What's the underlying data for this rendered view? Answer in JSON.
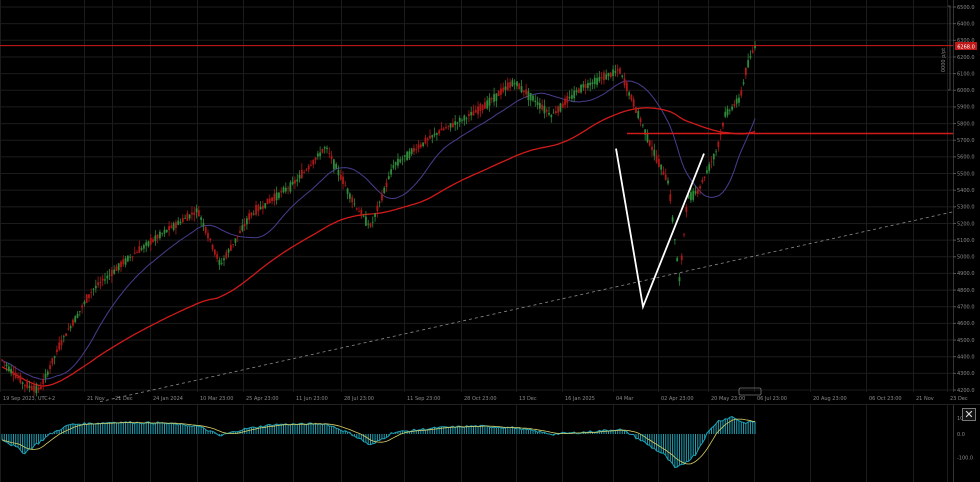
{
  "colors": {
    "background": "#000000",
    "bull": "#2e8b3a",
    "bear": "#b01818",
    "sma_short": "#4a3d8f",
    "sma_long": "#d11a1a",
    "resistance": "#d11a1a",
    "price_label_bg": "#c01818",
    "macd": "#1fa0b4",
    "signal": "#d9d066",
    "trend_dashed": "#8c8c8c",
    "v_pattern": "#ffffff"
  },
  "price_panel": {
    "current_price_label": "6268.0",
    "price_axis_caption": "0000 p/pt",
    "price_ticks": [
      "6500.0",
      "6400.0",
      "6300.0",
      "6200.0",
      "6100.0",
      "6000.0",
      "5900.0",
      "5800.0",
      "5700.0",
      "5600.0",
      "5500.0",
      "5400.0",
      "5300.0",
      "5200.0",
      "5100.0",
      "5000.0",
      "4900.0",
      "4800.0",
      "4700.0",
      "4600.0",
      "4500.0",
      "4400.0",
      "4300.0",
      "4200.0"
    ]
  },
  "time_axis": {
    "labels": [
      "19 Sep 2023, UTC+2",
      "21 Nov",
      "21 Dec",
      "24 Jan 2024",
      "10 Mar 23:00",
      "25 Apr 23:00",
      "11 Jun 23:00",
      "28 Jul 23:00",
      "11 Sep 23:00",
      "28 Oct 23:00",
      "13 Dec",
      "16 Jan 2025",
      "04 Mar",
      "02 Apr 23:00",
      "20 May 23:00",
      "06 Jul 23:00",
      "20 Aug 23:00",
      "06 Oct 23:00",
      "21 Nov",
      "23 Dec"
    ]
  },
  "indicator_panel": {
    "ticks": [
      "100.0",
      "0.0",
      "-100.0"
    ]
  },
  "close_button_label": "✕",
  "chart_data": {
    "type": "candlestick",
    "title": "",
    "ylim": [
      4200,
      6500
    ],
    "indicator_ylim": [
      -170,
      140
    ],
    "horizontal_levels": [
      {
        "value": 6268,
        "color": "#d11a1a"
      },
      {
        "value": 5740,
        "color": "#d11a1a"
      }
    ],
    "trendline": {
      "from": [
        "19 Sep 2023",
        4130
      ],
      "to": [
        "23 Dec",
        5270
      ],
      "style": "dashed"
    },
    "v_pattern": {
      "points": [
        [
          "04 Mar",
          5650
        ],
        [
          "02 Apr",
          4700
        ],
        [
          "20 May",
          5620
        ]
      ]
    },
    "close_path": [
      {
        "t": 0.0,
        "price": 4380
      },
      {
        "t": 0.03,
        "price": 4230
      },
      {
        "t": 0.05,
        "price": 4200
      },
      {
        "t": 0.08,
        "price": 4500
      },
      {
        "t": 0.12,
        "price": 4800
      },
      {
        "t": 0.17,
        "price": 5000
      },
      {
        "t": 0.21,
        "price": 5130
      },
      {
        "t": 0.26,
        "price": 5280
      },
      {
        "t": 0.29,
        "price": 4950
      },
      {
        "t": 0.33,
        "price": 5250
      },
      {
        "t": 0.39,
        "price": 5450
      },
      {
        "t": 0.43,
        "price": 5660
      },
      {
        "t": 0.47,
        "price": 5300
      },
      {
        "t": 0.49,
        "price": 5180
      },
      {
        "t": 0.52,
        "price": 5550
      },
      {
        "t": 0.58,
        "price": 5750
      },
      {
        "t": 0.63,
        "price": 5870
      },
      {
        "t": 0.68,
        "price": 6050
      },
      {
        "t": 0.73,
        "price": 5850
      },
      {
        "t": 0.77,
        "price": 6020
      },
      {
        "t": 0.82,
        "price": 6120
      },
      {
        "t": 0.85,
        "price": 5800
      },
      {
        "t": 0.87,
        "price": 5580
      },
      {
        "t": 0.885,
        "price": 5450
      },
      {
        "t": 0.9,
        "price": 4850
      },
      {
        "t": 0.91,
        "price": 5350
      },
      {
        "t": 0.925,
        "price": 5400
      },
      {
        "t": 0.95,
        "price": 5650
      },
      {
        "t": 0.96,
        "price": 5850
      },
      {
        "t": 0.98,
        "price": 5950
      },
      {
        "t": 0.99,
        "price": 6150
      },
      {
        "t": 1.0,
        "price": 6268
      }
    ],
    "macd_path": [
      {
        "t": 0.0,
        "value": -20
      },
      {
        "t": 0.03,
        "value": -80
      },
      {
        "t": 0.06,
        "value": -10
      },
      {
        "t": 0.09,
        "value": 60
      },
      {
        "t": 0.15,
        "value": 75
      },
      {
        "t": 0.21,
        "value": 70
      },
      {
        "t": 0.26,
        "value": 50
      },
      {
        "t": 0.29,
        "value": -10
      },
      {
        "t": 0.32,
        "value": 30
      },
      {
        "t": 0.36,
        "value": 60
      },
      {
        "t": 0.43,
        "value": 65
      },
      {
        "t": 0.47,
        "value": -10
      },
      {
        "t": 0.49,
        "value": -50
      },
      {
        "t": 0.52,
        "value": 10
      },
      {
        "t": 0.58,
        "value": 40
      },
      {
        "t": 0.63,
        "value": 50
      },
      {
        "t": 0.68,
        "value": 40
      },
      {
        "t": 0.73,
        "value": 0
      },
      {
        "t": 0.77,
        "value": 10
      },
      {
        "t": 0.82,
        "value": 30
      },
      {
        "t": 0.85,
        "value": -30
      },
      {
        "t": 0.88,
        "value": -90
      },
      {
        "t": 0.895,
        "value": -150
      },
      {
        "t": 0.92,
        "value": -90
      },
      {
        "t": 0.95,
        "value": 80
      },
      {
        "t": 0.97,
        "value": 110
      },
      {
        "t": 0.985,
        "value": 70
      },
      {
        "t": 1.0,
        "value": 80
      }
    ]
  }
}
